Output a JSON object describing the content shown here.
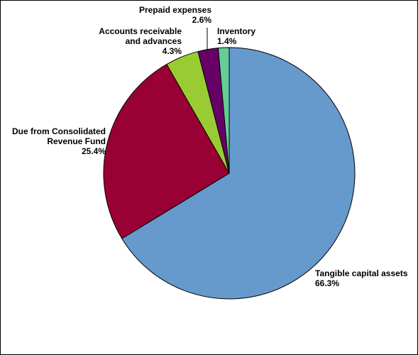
{
  "chart_data": {
    "type": "pie",
    "title": "",
    "start": "12 o'clock",
    "direction": "clockwise",
    "slices": [
      {
        "name": "Tangible capital assets",
        "value": 66.3,
        "label": [
          "Tangible capital assets",
          "66.3%"
        ],
        "color": "#6699CC"
      },
      {
        "name": "Due from Consolidated Revenue Fund",
        "value": 25.4,
        "label": [
          "Due from Consolidated",
          "Revenue Fund",
          "25.4%"
        ],
        "color": "#990033"
      },
      {
        "name": "Accounts receivable and advances",
        "value": 4.3,
        "label": [
          "Accounts receivable",
          "and advances",
          "4.3%"
        ],
        "color": "#99CC33"
      },
      {
        "name": "Prepaid expenses",
        "value": 2.6,
        "label": [
          "Prepaid expenses",
          "2.6%"
        ],
        "color": "#660066"
      },
      {
        "name": "Inventory",
        "value": 1.4,
        "label": [
          "Inventory",
          "1.4%"
        ],
        "color": "#66CC99"
      }
    ]
  }
}
